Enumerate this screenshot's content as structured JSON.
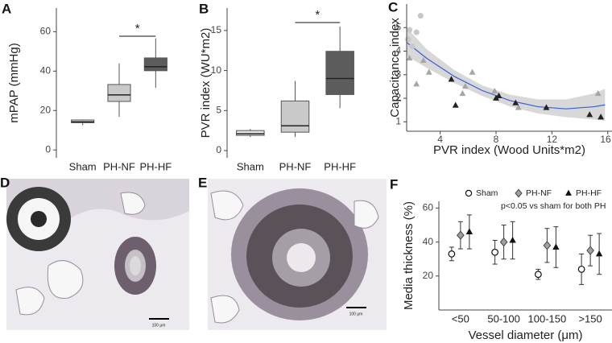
{
  "chart_data": [
    {
      "type": "box",
      "panel_label": "A",
      "y_label": "mPAP (mmHg)",
      "categories": [
        "Sham",
        "PH-NF",
        "PH-HF"
      ],
      "boxes": [
        {
          "min": 12.5,
          "q1": 13.8,
          "median": 14.3,
          "q3": 15.2,
          "max": 15.5,
          "color": "#e6e6e6"
        },
        {
          "min": 16.8,
          "q1": 24.6,
          "median": 27.9,
          "q3": 33.2,
          "max": 43.9,
          "color": "#c9c9c9"
        },
        {
          "min": 31.6,
          "q1": 40.2,
          "median": 42.2,
          "q3": 46.7,
          "max": 56.6,
          "color": "#5c5c5c"
        }
      ],
      "ylim": [
        -4,
        72
      ],
      "yticks": [
        0,
        20,
        40,
        60
      ],
      "significance": [
        {
          "between": [
            "PH-NF",
            "PH-HF"
          ],
          "label": "*"
        }
      ]
    },
    {
      "type": "box",
      "panel_label": "B",
      "y_label": "PVR index (WU*m2)",
      "categories": [
        "Sham",
        "PH-NF",
        "PH-HF"
      ],
      "boxes": [
        {
          "min": 1.7,
          "q1": 1.9,
          "median": 2.1,
          "q3": 2.5,
          "max": 2.7,
          "color": "#e6e6e6"
        },
        {
          "min": 1.7,
          "q1": 2.3,
          "median": 3.1,
          "q3": 6.2,
          "max": 8.7,
          "color": "#c9c9c9"
        },
        {
          "min": 5.3,
          "q1": 7.0,
          "median": 9.0,
          "q3": 12.4,
          "max": 15.5,
          "color": "#5c5c5c"
        }
      ],
      "ylim": [
        -0.9,
        17.8
      ],
      "yticks": [
        0,
        5,
        10,
        15
      ],
      "significance": [
        {
          "between": [
            "PH-NF",
            "PH-HF"
          ],
          "label": "*"
        }
      ]
    },
    {
      "type": "scatter",
      "panel_label": "C",
      "x_label": "PVR index (Wood Units*m2)",
      "y_label": "Capacitance index",
      "series": [
        {
          "marker": "circle",
          "color": "#c8c8c8",
          "x": [
            1.8,
            2.3,
            2.6,
            1.7,
            2.0
          ],
          "y": [
            4.9,
            4.8,
            5.5,
            4.5,
            4.2
          ]
        },
        {
          "marker": "triangle",
          "color": "#a6a6a6",
          "x": [
            1.8,
            2.3,
            2.8,
            3.2,
            5.6,
            5.8,
            6.3,
            7.9,
            9.6,
            15.3
          ],
          "y": [
            3.7,
            2.6,
            3.6,
            3.1,
            2.2,
            2.5,
            3.1,
            2.3,
            1.6,
            2.2
          ]
        },
        {
          "marker": "triangle",
          "color": "#222222",
          "x": [
            5.1,
            4.8,
            8.2,
            9.4,
            11.6,
            14.7,
            15.5,
            8.0
          ],
          "y": [
            1.7,
            2.8,
            2.1,
            1.8,
            1.6,
            1.3,
            1.2,
            2.0
          ]
        }
      ],
      "fit": {
        "color": "#3a5bd9",
        "band_color": "#d4d4d4",
        "x": [
          1.6,
          3,
          5,
          7,
          9,
          11,
          13,
          15,
          15.8
        ],
        "y": [
          4.37,
          3.71,
          2.93,
          2.33,
          1.9,
          1.64,
          1.55,
          1.64,
          1.72
        ],
        "lower": [
          3.8,
          3.3,
          2.65,
          2.1,
          1.65,
          1.35,
          1.2,
          1.1,
          1.05
        ],
        "upper": [
          5.0,
          4.1,
          3.2,
          2.55,
          2.15,
          1.95,
          1.95,
          2.2,
          2.4
        ]
      },
      "xlim": [
        1.6,
        16.3
      ],
      "ylim": [
        0.6,
        6.0
      ],
      "xticks": [
        4,
        8,
        12,
        16
      ],
      "yticks": [
        1,
        2,
        3,
        4,
        5
      ]
    },
    {
      "type": "errorbar",
      "panel_label": "F",
      "x_label": "Vessel diameter (μm)",
      "y_label": "Media thickness (%)",
      "note": "p<0.05 vs sham for both PH",
      "categories": [
        "<50",
        "50-100",
        "100-150",
        ">150"
      ],
      "series": [
        {
          "name": "Sham",
          "marker": "circle",
          "color": "#ffffff",
          "values": [
            33,
            34,
            21,
            24
          ],
          "errors": [
            4,
            7,
            3,
            9
          ]
        },
        {
          "name": "PH-NF",
          "marker": "diamond",
          "color": "#a0a0a0",
          "values": [
            44,
            40,
            38,
            35
          ],
          "errors": [
            8,
            10,
            10,
            9
          ]
        },
        {
          "name": "PH-HF",
          "marker": "triangle",
          "color": "#111111",
          "values": [
            46,
            41,
            37,
            33
          ],
          "errors": [
            10,
            11,
            12,
            12
          ]
        }
      ],
      "ylim": [
        0,
        64
      ],
      "yticks": [
        20,
        40,
        60
      ]
    }
  ],
  "images": [
    {
      "panel_label": "D",
      "scale_bar": "100 μm"
    },
    {
      "panel_label": "E",
      "scale_bar": "100 μm"
    }
  ]
}
